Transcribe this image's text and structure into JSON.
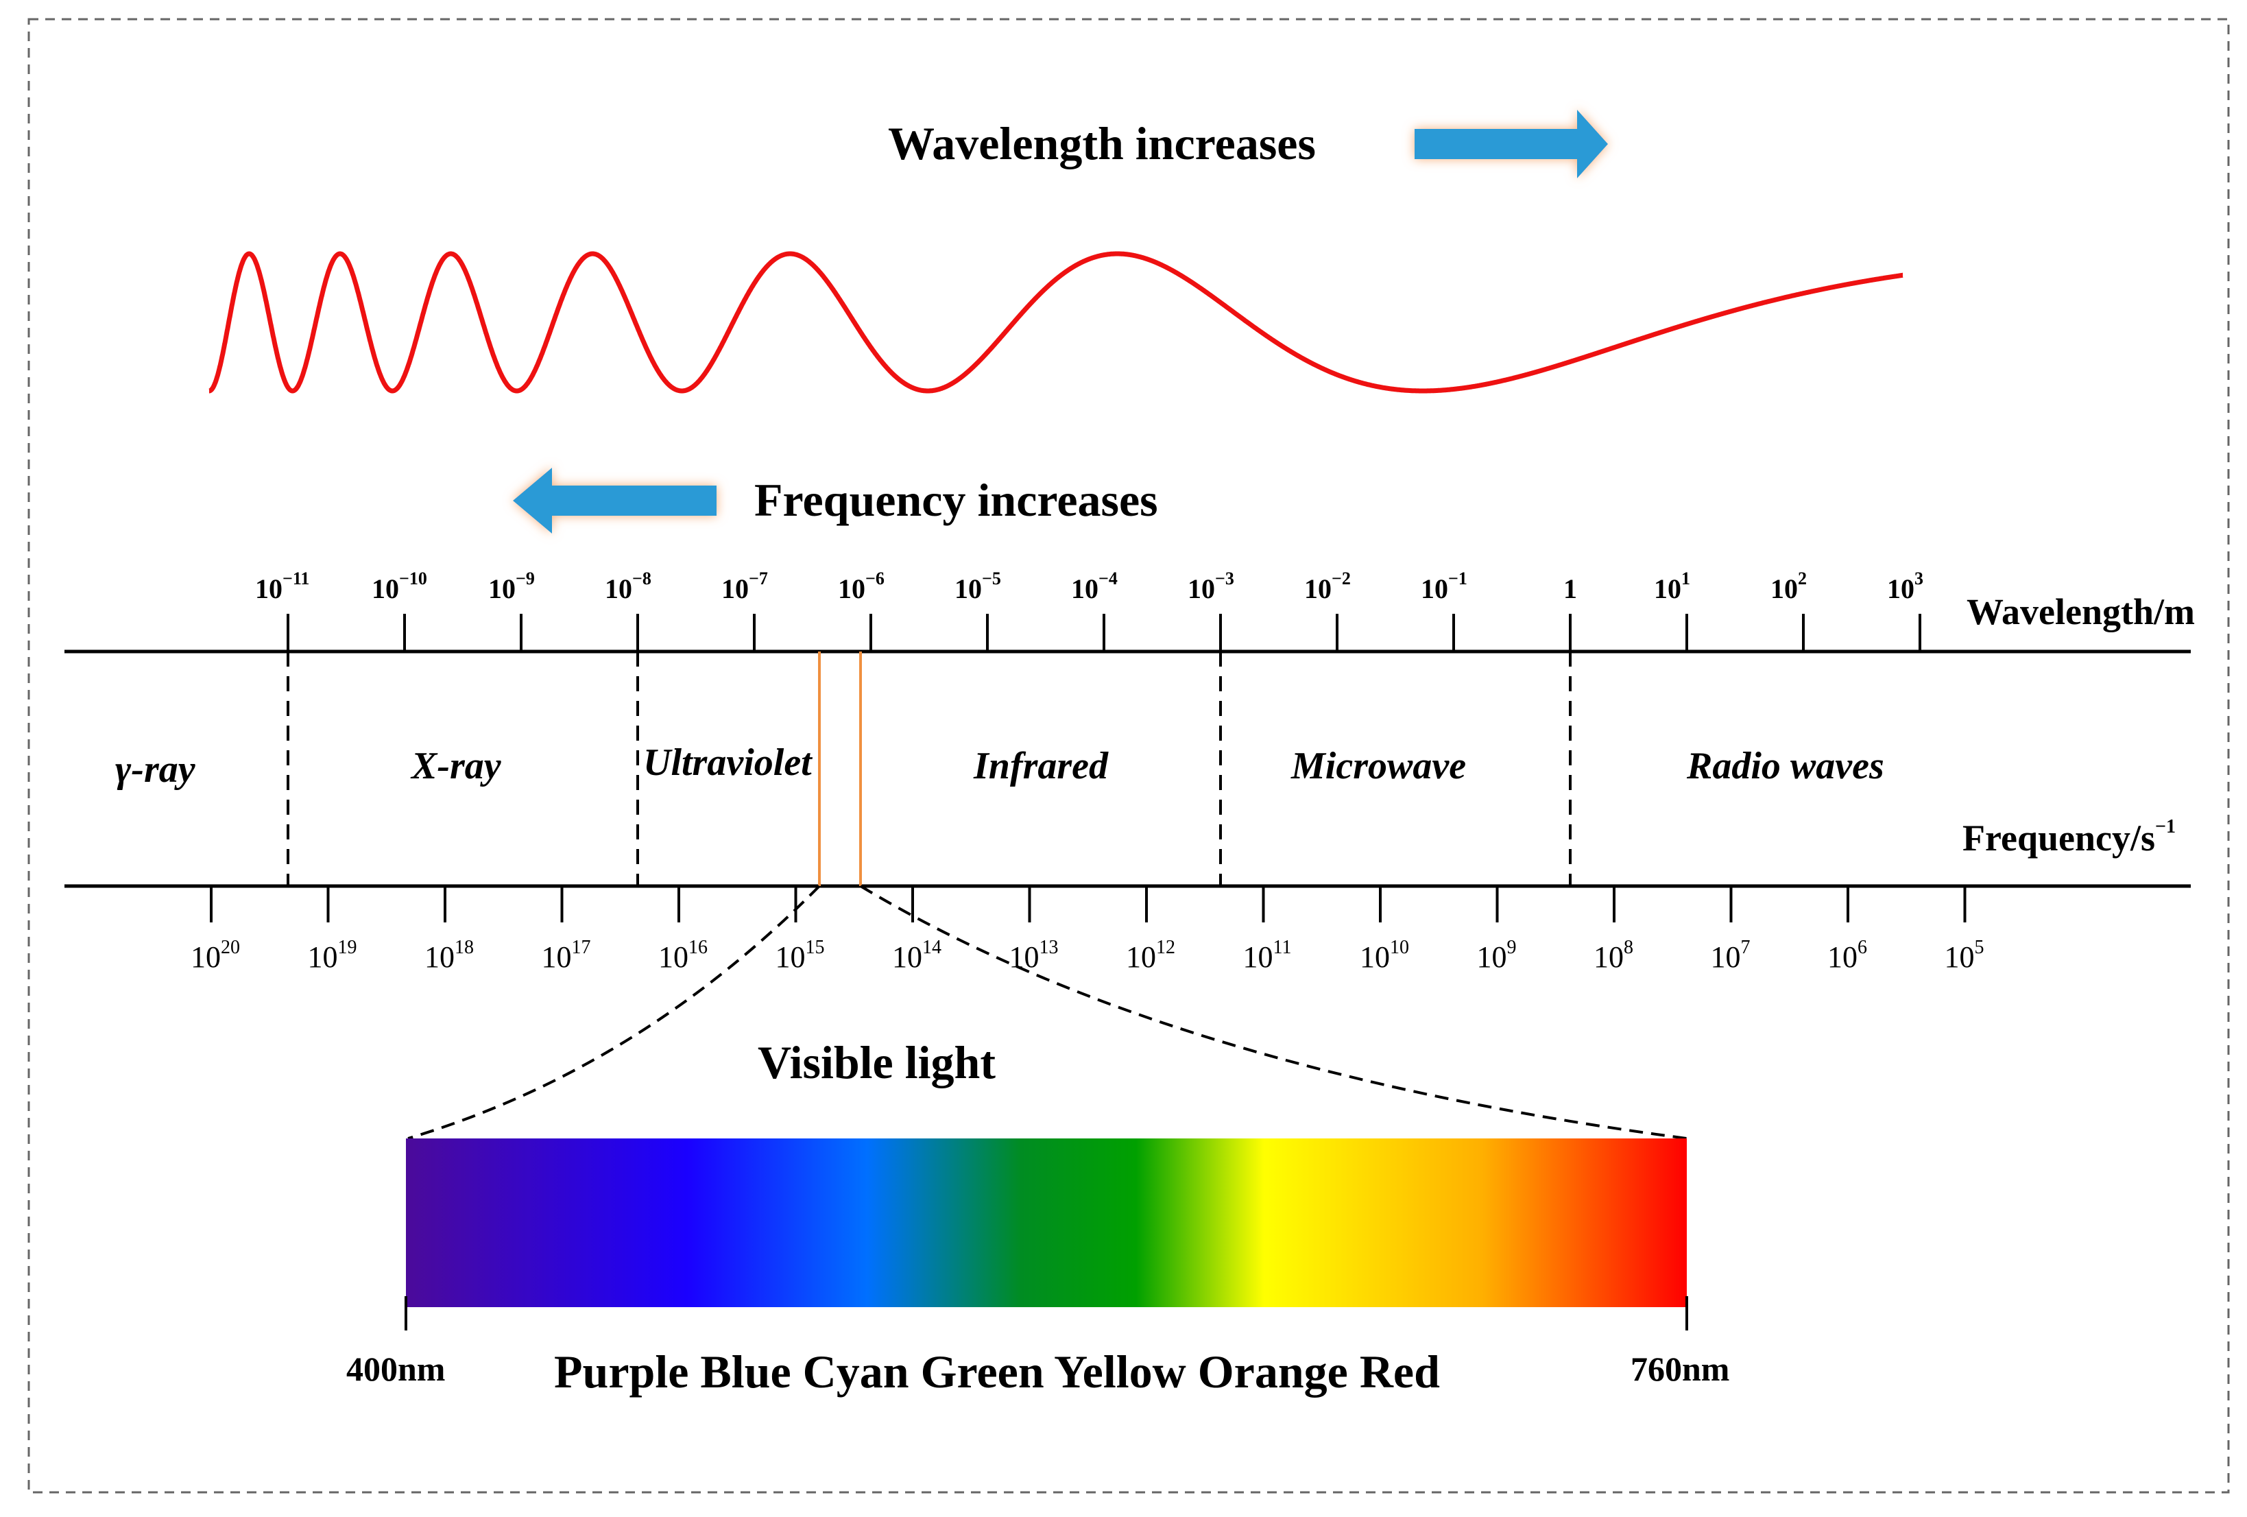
{
  "wavelength_label": "Wavelength increases",
  "frequency_label": "Frequency increases",
  "wavelength_axis_label": "Wavelength/m",
  "frequency_axis_label": {
    "base": "Frequency/s",
    "exp": "−1"
  },
  "wavelength_ticks": [
    {
      "base": "10",
      "exp": "−11"
    },
    {
      "base": "10",
      "exp": "−10"
    },
    {
      "base": "10",
      "exp": "−9"
    },
    {
      "base": "10",
      "exp": "−8"
    },
    {
      "base": "10",
      "exp": "−7"
    },
    {
      "base": "10",
      "exp": "−6"
    },
    {
      "base": "10",
      "exp": "−5"
    },
    {
      "base": "10",
      "exp": "−4"
    },
    {
      "base": "10",
      "exp": "−3"
    },
    {
      "base": "10",
      "exp": "−2"
    },
    {
      "base": "10",
      "exp": "−1"
    },
    {
      "base": "1",
      "exp": ""
    },
    {
      "base": "10",
      "exp": "1"
    },
    {
      "base": "10",
      "exp": "2"
    },
    {
      "base": "10",
      "exp": "3"
    }
  ],
  "frequency_ticks": [
    {
      "base": "10",
      "exp": "20"
    },
    {
      "base": "10",
      "exp": "19"
    },
    {
      "base": "10",
      "exp": "18"
    },
    {
      "base": "10",
      "exp": "17"
    },
    {
      "base": "10",
      "exp": "16"
    },
    {
      "base": "10",
      "exp": "15"
    },
    {
      "base": "10",
      "exp": "14"
    },
    {
      "base": "10",
      "exp": "13"
    },
    {
      "base": "10",
      "exp": "12"
    },
    {
      "base": "10",
      "exp": "11"
    },
    {
      "base": "10",
      "exp": "10"
    },
    {
      "base": "10",
      "exp": "9"
    },
    {
      "base": "10",
      "exp": "8"
    },
    {
      "base": "10",
      "exp": "7"
    },
    {
      "base": "10",
      "exp": "6"
    },
    {
      "base": "10",
      "exp": "5"
    }
  ],
  "regions": [
    {
      "symbol": "γ",
      "label": "-ray"
    },
    {
      "symbol": "",
      "label": "X-ray"
    },
    {
      "symbol": "",
      "label": "Ultraviolet"
    },
    {
      "symbol": "",
      "label": "Infrared"
    },
    {
      "symbol": "",
      "label": "Microwave"
    },
    {
      "symbol": "",
      "label": "Radio waves"
    }
  ],
  "visible_light_label": "Visible light",
  "spectrum": {
    "min_label": "400nm",
    "max_label": "760nm",
    "colors_label": "Purple Blue Cyan Green Yellow Orange Red",
    "gradient_colors": [
      "#4b0a9a",
      "#1a00ff",
      "#0070ff",
      "#008c22",
      "#00a000",
      "#ffff00",
      "#ffb000",
      "#ff0000"
    ]
  },
  "colors": {
    "wave": "#ee1111",
    "arrow": "#2b9ad6",
    "arrow_glow": "#f6b07e",
    "visible_band_line": "#f09040"
  }
}
